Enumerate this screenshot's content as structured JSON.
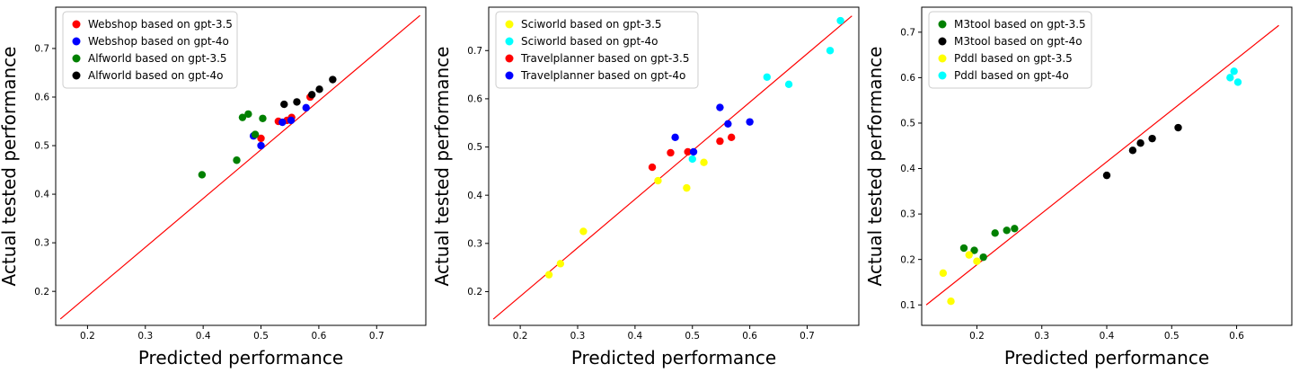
{
  "figure": {
    "background": "#ffffff",
    "description": "Three scatter plots comparing predicted vs actual tested performance"
  },
  "chart_data": [
    {
      "type": "scatter",
      "title": "",
      "xlabel": "Predicted performance",
      "ylabel": "Actual tested performance",
      "xlim": [
        0.145,
        0.785
      ],
      "ylim": [
        0.13,
        0.785
      ],
      "xticks": [
        0.2,
        0.3,
        0.4,
        0.5,
        0.6,
        0.7
      ],
      "yticks": [
        0.2,
        0.3,
        0.4,
        0.5,
        0.6,
        0.7
      ],
      "grid": false,
      "legend_position": "upper left",
      "identity_line": {
        "color": "#ff0000",
        "from": [
          0.153,
          0.143
        ],
        "to": [
          0.775,
          0.768
        ]
      },
      "series": [
        {
          "name": "Webshop based on gpt-3.5",
          "color": "#ff0000",
          "marker": "circle",
          "points": [
            [
              0.5,
              0.515
            ],
            [
              0.53,
              0.55
            ],
            [
              0.545,
              0.552
            ],
            [
              0.553,
              0.558
            ],
            [
              0.585,
              0.6
            ]
          ]
        },
        {
          "name": "Webshop based on gpt-4o",
          "color": "#0000ff",
          "marker": "circle",
          "points": [
            [
              0.487,
              0.52
            ],
            [
              0.5,
              0.5
            ],
            [
              0.537,
              0.548
            ],
            [
              0.552,
              0.552
            ],
            [
              0.578,
              0.578
            ]
          ]
        },
        {
          "name": "Alfworld based on gpt-3.5",
          "color": "#008000",
          "marker": "circle",
          "points": [
            [
              0.398,
              0.44
            ],
            [
              0.458,
              0.47
            ],
            [
              0.468,
              0.558
            ],
            [
              0.478,
              0.565
            ],
            [
              0.49,
              0.523
            ],
            [
              0.503,
              0.556
            ]
          ]
        },
        {
          "name": "Alfworld based on gpt-4o",
          "color": "#000000",
          "marker": "circle",
          "points": [
            [
              0.54,
              0.585
            ],
            [
              0.562,
              0.59
            ],
            [
              0.588,
              0.605
            ],
            [
              0.601,
              0.616
            ],
            [
              0.624,
              0.636
            ]
          ]
        }
      ]
    },
    {
      "type": "scatter",
      "title": "",
      "xlabel": "Predicted performance",
      "ylabel": "Actual tested performance",
      "xlim": [
        0.145,
        0.79
      ],
      "ylim": [
        0.13,
        0.79
      ],
      "xticks": [
        0.2,
        0.3,
        0.4,
        0.5,
        0.6,
        0.7
      ],
      "yticks": [
        0.2,
        0.3,
        0.4,
        0.5,
        0.6,
        0.7
      ],
      "grid": false,
      "legend_position": "upper left",
      "identity_line": {
        "color": "#ff0000",
        "from": [
          0.153,
          0.143
        ],
        "to": [
          0.778,
          0.772
        ]
      },
      "series": [
        {
          "name": "Sciworld based on gpt-3.5",
          "color": "#ffff00",
          "marker": "circle",
          "points": [
            [
              0.25,
              0.235
            ],
            [
              0.27,
              0.258
            ],
            [
              0.31,
              0.325
            ],
            [
              0.44,
              0.43
            ],
            [
              0.49,
              0.415
            ],
            [
              0.52,
              0.468
            ]
          ]
        },
        {
          "name": "Sciworld based on gpt-4o",
          "color": "#00ffff",
          "marker": "circle",
          "points": [
            [
              0.5,
              0.475
            ],
            [
              0.63,
              0.645
            ],
            [
              0.668,
              0.63
            ],
            [
              0.74,
              0.7
            ],
            [
              0.758,
              0.762
            ]
          ]
        },
        {
          "name": "Travelplanner based on gpt-3.5",
          "color": "#ff0000",
          "marker": "circle",
          "points": [
            [
              0.43,
              0.458
            ],
            [
              0.462,
              0.488
            ],
            [
              0.492,
              0.49
            ],
            [
              0.548,
              0.512
            ],
            [
              0.568,
              0.52
            ]
          ]
        },
        {
          "name": "Travelplanner based on gpt-4o",
          "color": "#0000ff",
          "marker": "circle",
          "points": [
            [
              0.47,
              0.52
            ],
            [
              0.502,
              0.49
            ],
            [
              0.548,
              0.582
            ],
            [
              0.562,
              0.548
            ],
            [
              0.6,
              0.552
            ]
          ]
        }
      ]
    },
    {
      "type": "scatter",
      "title": "",
      "xlabel": "Predicted performance",
      "ylabel": "Actual tested performance",
      "xlim": [
        0.115,
        0.685
      ],
      "ylim": [
        0.055,
        0.755
      ],
      "xticks": [
        0.2,
        0.3,
        0.4,
        0.5,
        0.6
      ],
      "yticks": [
        0.1,
        0.2,
        0.3,
        0.4,
        0.5,
        0.6,
        0.7
      ],
      "grid": false,
      "legend_position": "upper left",
      "identity_line": {
        "color": "#ff0000",
        "from": [
          0.122,
          0.1
        ],
        "to": [
          0.665,
          0.715
        ]
      },
      "series": [
        {
          "name": "M3tool based on gpt-3.5",
          "color": "#008000",
          "marker": "circle",
          "points": [
            [
              0.18,
              0.225
            ],
            [
              0.196,
              0.22
            ],
            [
              0.21,
              0.205
            ],
            [
              0.228,
              0.258
            ],
            [
              0.246,
              0.264
            ],
            [
              0.258,
              0.268
            ]
          ]
        },
        {
          "name": "M3tool based on gpt-4o",
          "color": "#000000",
          "marker": "circle",
          "points": [
            [
              0.4,
              0.385
            ],
            [
              0.44,
              0.44
            ],
            [
              0.452,
              0.456
            ],
            [
              0.47,
              0.466
            ],
            [
              0.51,
              0.49
            ]
          ]
        },
        {
          "name": "Pddl based on gpt-3.5",
          "color": "#ffff00",
          "marker": "circle",
          "points": [
            [
              0.148,
              0.17
            ],
            [
              0.16,
              0.108
            ],
            [
              0.188,
              0.21
            ],
            [
              0.2,
              0.196
            ]
          ]
        },
        {
          "name": "Pddl based on gpt-4o",
          "color": "#00ffff",
          "marker": "circle",
          "points": [
            [
              0.59,
              0.6
            ],
            [
              0.596,
              0.614
            ],
            [
              0.602,
              0.59
            ]
          ]
        }
      ]
    }
  ]
}
